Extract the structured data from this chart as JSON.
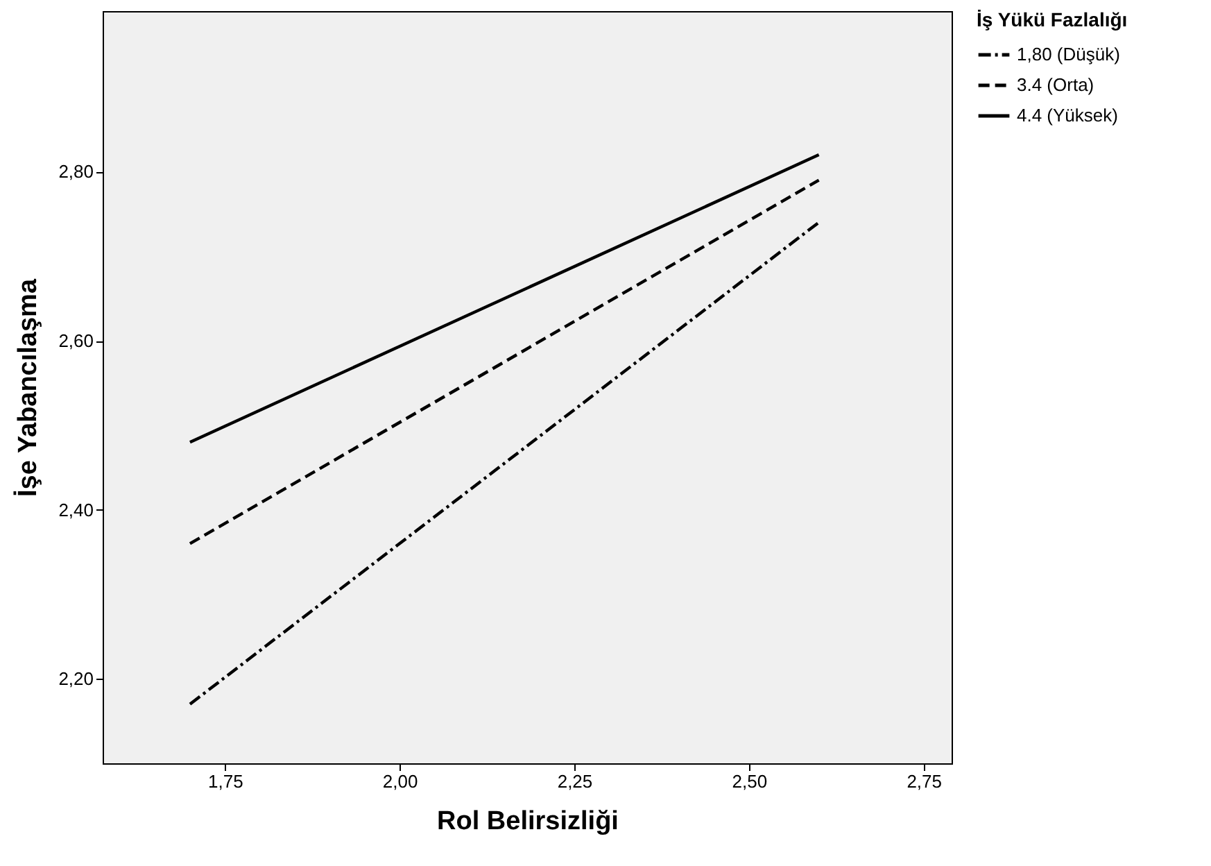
{
  "chart_data": {
    "type": "line",
    "xlabel": "Rol Belirsizliği",
    "ylabel": "İşe Yabancılaşma",
    "legend_title": "İş Yükü Fazlalığı",
    "legend": "top right",
    "grid": false,
    "marker": "none",
    "x": [
      1.7,
      2.6
    ],
    "xlim": [
      1.575,
      2.79
    ],
    "ylim": [
      2.1,
      2.99
    ],
    "xticks": [
      {
        "value": 1.75,
        "label": "1,75"
      },
      {
        "value": 2.0,
        "label": "2,00"
      },
      {
        "value": 2.25,
        "label": "2,25"
      },
      {
        "value": 2.5,
        "label": "2,50"
      },
      {
        "value": 2.75,
        "label": "2,75"
      }
    ],
    "yticks": [
      {
        "value": 2.2,
        "label": "2,20"
      },
      {
        "value": 2.4,
        "label": "2,40"
      },
      {
        "value": 2.6,
        "label": "2,60"
      },
      {
        "value": 2.8,
        "label": "2,80"
      }
    ],
    "series": [
      {
        "name": "1,80 (Düşük)",
        "color": "#000000",
        "line_style": "dashdot",
        "values": [
          2.17,
          2.74
        ]
      },
      {
        "name": "3.4 (Orta)",
        "color": "#000000",
        "line_style": "dashed",
        "values": [
          2.36,
          2.79
        ]
      },
      {
        "name": "4.4 (Yüksek)",
        "color": "#000000",
        "line_style": "solid",
        "values": [
          2.48,
          2.82
        ]
      }
    ]
  }
}
